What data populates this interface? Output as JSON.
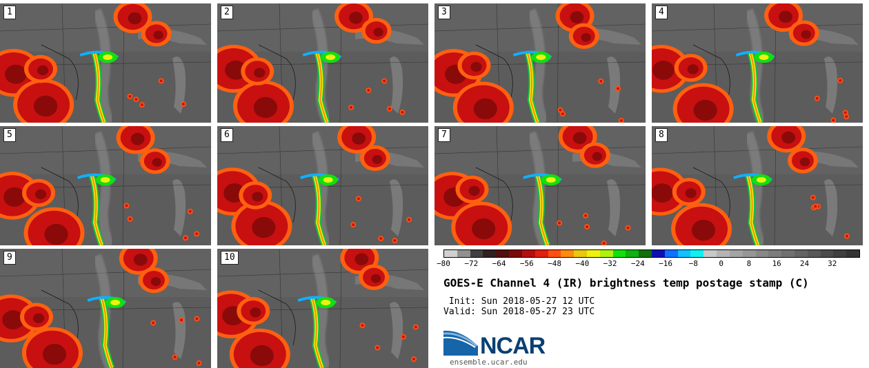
{
  "panels": [
    {
      "number": "1"
    },
    {
      "number": "2"
    },
    {
      "number": "3"
    },
    {
      "number": "4"
    },
    {
      "number": "5"
    },
    {
      "number": "6"
    },
    {
      "number": "7"
    },
    {
      "number": "8"
    },
    {
      "number": "9"
    },
    {
      "number": "10"
    }
  ],
  "colorbar": {
    "colors": [
      "#d0d0d0",
      "#909090",
      "#404040",
      "#302020",
      "#501010",
      "#7a0a0a",
      "#b51010",
      "#e02010",
      "#ff5010",
      "#ff8a10",
      "#e8c810",
      "#f0f010",
      "#b0f010",
      "#10e010",
      "#10b010",
      "#107010",
      "#1010b0",
      "#1070ff",
      "#10c0ff",
      "#10f0f0",
      "#c8c8c8",
      "#b4b4b4",
      "#a4a4a4",
      "#969696",
      "#888888",
      "#7c7c7c",
      "#707070",
      "#646464",
      "#585858",
      "#4c4c4c",
      "#404040",
      "#343434"
    ],
    "ticks": [
      "−80",
      "−72",
      "−64",
      "−56",
      "−48",
      "−40",
      "−32",
      "−24",
      "−16",
      "−8",
      "0",
      "8",
      "16",
      "24",
      "32"
    ],
    "min": -80,
    "max": 40
  },
  "title": "GOES-E Channel 4 (IR) brightness temp postage stamp (C)",
  "init": " Init: Sun 2018-05-27 12 UTC",
  "valid": "Valid: Sun 2018-05-27 23 UTC",
  "logo": {
    "text": "NCAR",
    "url": "ensemble.ucar.edu"
  }
}
